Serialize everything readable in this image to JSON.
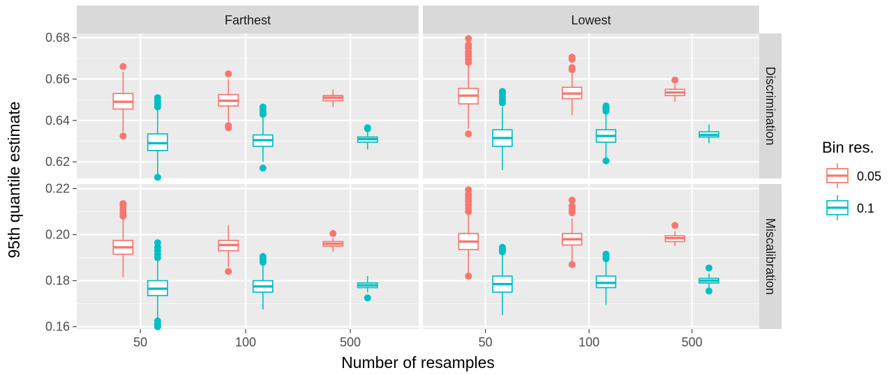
{
  "chart_data": {
    "type": "boxplot",
    "xlabel": "Number of resamples",
    "ylabel": "95th quantile estimate",
    "categories": [
      "50",
      "100",
      "500"
    ],
    "columns": [
      "Farthest",
      "Lowest"
    ],
    "rows": [
      {
        "name": "Discrimination",
        "ylim": [
          0.612,
          0.682
        ],
        "yticks": [
          0.62,
          0.64,
          0.66,
          0.68
        ],
        "tick_labels": [
          "0.62",
          "0.64",
          "0.66",
          "0.68"
        ]
      },
      {
        "name": "Miscalibration",
        "ylim": [
          0.159,
          0.222
        ],
        "yticks": [
          0.16,
          0.18,
          0.2,
          0.22
        ],
        "tick_labels": [
          "0.16",
          "0.18",
          "0.20",
          "0.22"
        ]
      }
    ],
    "legend": {
      "title": "Bin res.",
      "position": "right",
      "entries": [
        {
          "label": "0.05",
          "color": "#F8766D"
        },
        {
          "label": "0.1",
          "color": "#00BFC4"
        }
      ]
    },
    "grid": true,
    "panels": [
      {
        "column": "Farthest",
        "row": "Discrimination",
        "boxes": [
          {
            "category": "50",
            "group": "0.05",
            "q1": 0.6455,
            "median": 0.649,
            "q3": 0.653,
            "low": 0.6345,
            "high": 0.6635,
            "outliers": [
              0.666,
              0.6325
            ]
          },
          {
            "category": "50",
            "group": "0.1",
            "q1": 0.6255,
            "median": 0.629,
            "q3": 0.6335,
            "low": 0.6135,
            "high": 0.6455,
            "outliers": [
              0.651,
              0.6495,
              0.648,
              0.6465,
              0.6125
            ]
          },
          {
            "category": "100",
            "group": "0.05",
            "q1": 0.647,
            "median": 0.6495,
            "q3": 0.6525,
            "low": 0.6395,
            "high": 0.66,
            "outliers": [
              0.6625,
              0.6375,
              0.6365
            ]
          },
          {
            "category": "100",
            "group": "0.1",
            "q1": 0.6275,
            "median": 0.6305,
            "q3": 0.633,
            "low": 0.62,
            "high": 0.642,
            "outliers": [
              0.6465,
              0.6455,
              0.644,
              0.643,
              0.617
            ]
          },
          {
            "category": "500",
            "group": "0.05",
            "q1": 0.6495,
            "median": 0.651,
            "q3": 0.652,
            "low": 0.6465,
            "high": 0.655,
            "outliers": []
          },
          {
            "category": "500",
            "group": "0.1",
            "q1": 0.6295,
            "median": 0.631,
            "q3": 0.632,
            "low": 0.626,
            "high": 0.635,
            "outliers": [
              0.6365,
              0.636
            ]
          }
        ]
      },
      {
        "column": "Lowest",
        "row": "Discrimination",
        "boxes": [
          {
            "category": "50",
            "group": "0.05",
            "q1": 0.648,
            "median": 0.652,
            "q3": 0.6555,
            "low": 0.636,
            "high": 0.6665,
            "outliers": [
              0.6795,
              0.6765,
              0.675,
              0.673,
              0.672,
              0.671,
              0.6695,
              0.668,
              0.6335
            ]
          },
          {
            "category": "50",
            "group": "0.1",
            "q1": 0.6275,
            "median": 0.6315,
            "q3": 0.6355,
            "low": 0.616,
            "high": 0.6465,
            "outliers": [
              0.654,
              0.653,
              0.6515,
              0.65,
              0.6485
            ]
          },
          {
            "category": "100",
            "group": "0.05",
            "q1": 0.6505,
            "median": 0.653,
            "q3": 0.656,
            "low": 0.6425,
            "high": 0.664,
            "outliers": [
              0.6705,
              0.6695,
              0.6655,
              0.6645
            ]
          },
          {
            "category": "100",
            "group": "0.1",
            "q1": 0.6295,
            "median": 0.6325,
            "q3": 0.6355,
            "low": 0.622,
            "high": 0.644,
            "outliers": [
              0.647,
              0.646,
              0.6455,
              0.6445,
              0.6205
            ]
          },
          {
            "category": "500",
            "group": "0.05",
            "q1": 0.652,
            "median": 0.6535,
            "q3": 0.655,
            "low": 0.649,
            "high": 0.6575,
            "outliers": [
              0.6595
            ]
          },
          {
            "category": "500",
            "group": "0.1",
            "q1": 0.632,
            "median": 0.633,
            "q3": 0.6345,
            "low": 0.629,
            "high": 0.638,
            "outliers": []
          }
        ]
      },
      {
        "column": "Farthest",
        "row": "Miscalibration",
        "boxes": [
          {
            "category": "50",
            "group": "0.05",
            "q1": 0.1915,
            "median": 0.1945,
            "q3": 0.1975,
            "low": 0.1815,
            "high": 0.2065,
            "outliers": [
              0.2135,
              0.2125,
              0.211,
              0.2095,
              0.2085,
              0.208
            ]
          },
          {
            "category": "50",
            "group": "0.1",
            "q1": 0.1735,
            "median": 0.1765,
            "q3": 0.18,
            "low": 0.1635,
            "high": 0.189,
            "outliers": [
              0.1965,
              0.1945,
              0.193,
              0.1915,
              0.19,
              0.1625,
              0.161,
              0.16
            ]
          },
          {
            "category": "100",
            "group": "0.05",
            "q1": 0.193,
            "median": 0.1955,
            "q3": 0.1975,
            "low": 0.186,
            "high": 0.204,
            "outliers": [
              0.184
            ]
          },
          {
            "category": "100",
            "group": "0.1",
            "q1": 0.175,
            "median": 0.1775,
            "q3": 0.18,
            "low": 0.1675,
            "high": 0.1865,
            "outliers": [
              0.1905,
              0.1895,
              0.1885,
              0.188
            ]
          },
          {
            "category": "500",
            "group": "0.05",
            "q1": 0.195,
            "median": 0.196,
            "q3": 0.197,
            "low": 0.1925,
            "high": 0.1985,
            "outliers": [
              0.2005
            ]
          },
          {
            "category": "500",
            "group": "0.1",
            "q1": 0.177,
            "median": 0.178,
            "q3": 0.179,
            "low": 0.175,
            "high": 0.182,
            "outliers": [
              0.1725
            ]
          }
        ]
      },
      {
        "column": "Lowest",
        "row": "Miscalibration",
        "boxes": [
          {
            "category": "50",
            "group": "0.05",
            "q1": 0.1935,
            "median": 0.197,
            "q3": 0.2005,
            "low": 0.1825,
            "high": 0.2095,
            "outliers": [
              0.2195,
              0.2175,
              0.216,
              0.2145,
              0.213,
              0.2115,
              0.21,
              0.182
            ]
          },
          {
            "category": "50",
            "group": "0.1",
            "q1": 0.175,
            "median": 0.1785,
            "q3": 0.182,
            "low": 0.165,
            "high": 0.1915,
            "outliers": [
              0.1945,
              0.1935,
              0.1925
            ]
          },
          {
            "category": "100",
            "group": "0.05",
            "q1": 0.1955,
            "median": 0.198,
            "q3": 0.2005,
            "low": 0.1885,
            "high": 0.207,
            "outliers": [
              0.215,
              0.2125,
              0.211,
              0.2095,
              0.187
            ]
          },
          {
            "category": "100",
            "group": "0.1",
            "q1": 0.177,
            "median": 0.179,
            "q3": 0.182,
            "low": 0.1695,
            "high": 0.189,
            "outliers": [
              0.1915,
              0.1905,
              0.1895
            ]
          },
          {
            "category": "500",
            "group": "0.05",
            "q1": 0.197,
            "median": 0.1985,
            "q3": 0.1995,
            "low": 0.195,
            "high": 0.2015,
            "outliers": [
              0.204
            ]
          },
          {
            "category": "500",
            "group": "0.1",
            "q1": 0.179,
            "median": 0.18,
            "q3": 0.181,
            "low": 0.1765,
            "high": 0.183,
            "outliers": [
              0.1855,
              0.1755
            ]
          }
        ]
      }
    ]
  }
}
